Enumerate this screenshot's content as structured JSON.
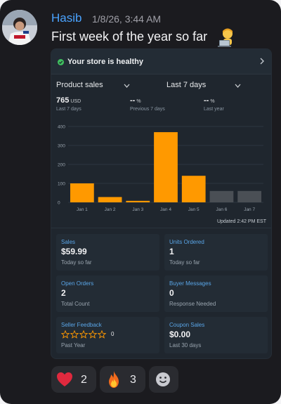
{
  "message": {
    "sender": "Hasib",
    "timestamp": "1/8/26, 3:44 AM",
    "text": "First week of the year so far",
    "emoji_icon": "technologist-emoji-icon"
  },
  "card": {
    "health_text": "Your store is healthy",
    "metric_select": "Product sales",
    "range_select": "Last 7 days",
    "stats": [
      {
        "value": "765",
        "unit": "USD",
        "sub": "Last 7 days"
      },
      {
        "value": "--",
        "unit": "%",
        "sub": "Previous 7 days"
      },
      {
        "value": "--",
        "unit": "%",
        "sub": "Last year"
      }
    ],
    "updated": "Updated 2:42 PM EST",
    "tiles": [
      {
        "label": "Sales",
        "value": "$59.99",
        "sub": "Today so far"
      },
      {
        "label": "Units Ordered",
        "value": "1",
        "sub": "Today so far"
      },
      {
        "label": "Open Orders",
        "value": "2",
        "sub": "Total Count"
      },
      {
        "label": "Buyer Messages",
        "value": "0",
        "sub": "Response Needed"
      },
      {
        "label": "Seller Feedback",
        "value": "",
        "stars": 0,
        "star_count": "0",
        "sub": "Past Year"
      },
      {
        "label": "Coupon Sales",
        "value": "$0.00",
        "sub": "Last 30 days"
      }
    ]
  },
  "chart_data": {
    "type": "bar",
    "categories": [
      "Jan 1",
      "Jan 2",
      "Jan 3",
      "Jan 4",
      "Jan 5",
      "Jan 6",
      "Jan 7"
    ],
    "values": [
      100,
      28,
      8,
      370,
      140,
      60,
      60
    ],
    "bar_colors": [
      "#ff9900",
      "#ff9900",
      "#ff9900",
      "#ff9900",
      "#ff9900",
      "#4a4f55",
      "#4a4f55"
    ],
    "yticks": [
      0,
      100,
      200,
      300,
      400
    ],
    "ylim": [
      0,
      400
    ],
    "grid": true
  },
  "reactions": [
    {
      "icon": "heart-icon",
      "count": "2"
    },
    {
      "icon": "fire-icon",
      "count": "3"
    },
    {
      "icon": "add-reaction-icon",
      "count": ""
    }
  ],
  "colors": {
    "accent": "#ff9900",
    "name": "#4aa3ff",
    "tile_label": "#5aa6e8",
    "healthy": "#3fbf5f"
  }
}
